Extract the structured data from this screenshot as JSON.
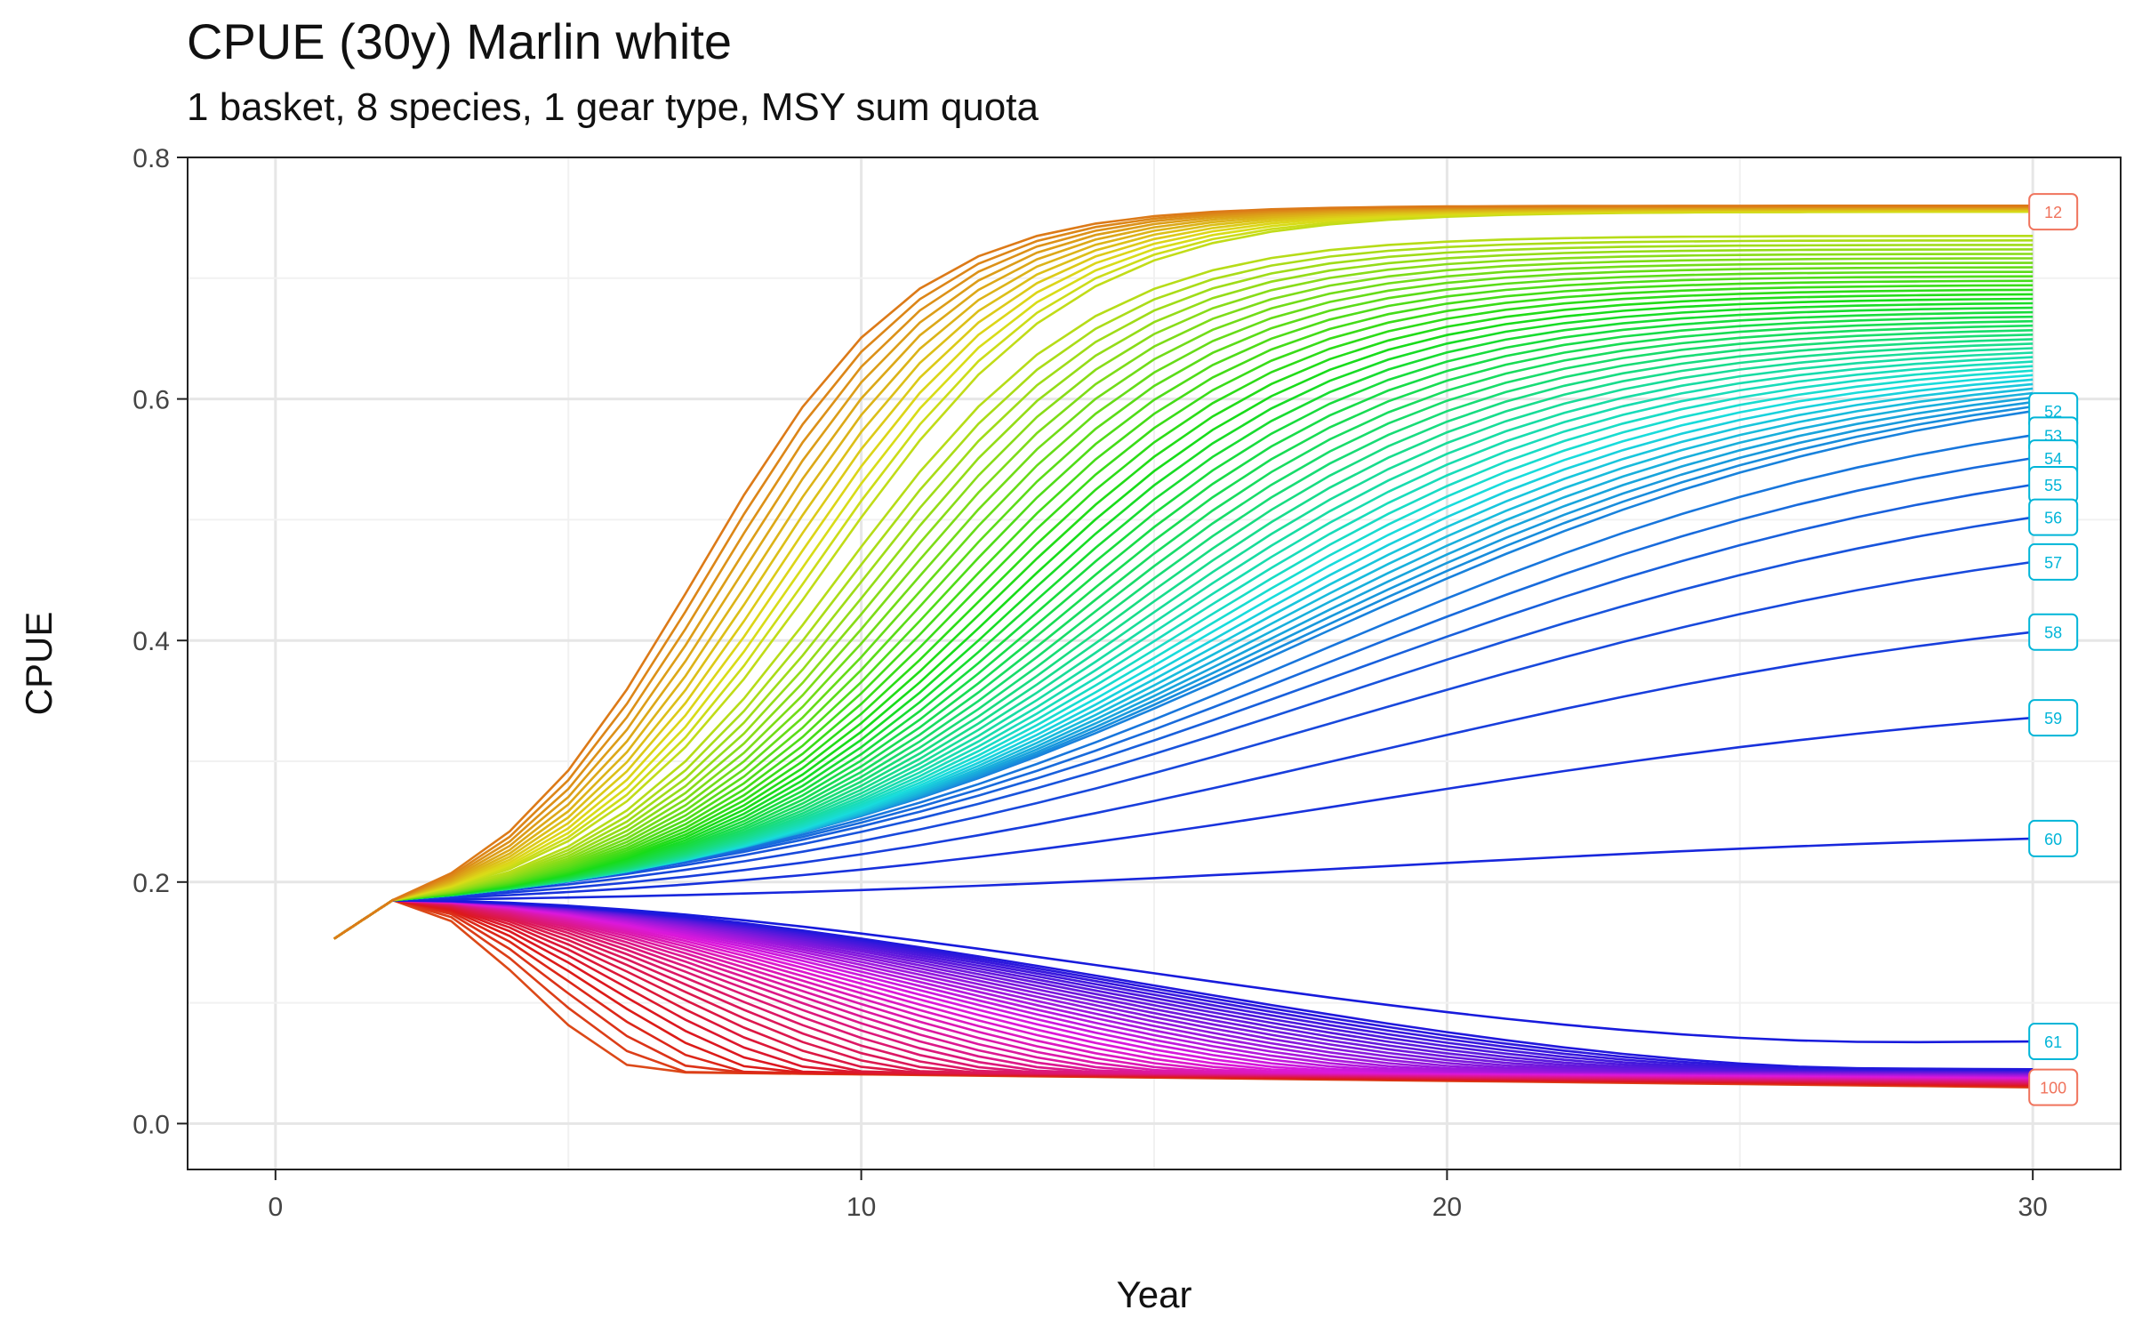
{
  "chart_data": {
    "type": "line",
    "title": "CPUE (30y) Marlin white",
    "subtitle": "1 basket, 8 species, 1 gear type, MSY sum quota",
    "xlabel": "Year",
    "ylabel": "CPUE",
    "xlim": [
      -1.5,
      31.5
    ],
    "ylim": [
      -0.038,
      0.8
    ],
    "x_ticks": [
      0,
      10,
      20,
      30
    ],
    "y_ticks": [
      0.0,
      0.2,
      0.4,
      0.6,
      0.8
    ],
    "x_tick_labels": [
      "0",
      "10",
      "20",
      "30"
    ],
    "y_tick_labels": [
      "0.0",
      "0.2",
      "0.4",
      "0.6",
      "0.8"
    ],
    "grid": true,
    "legend": "none",
    "x_range": [
      1,
      30
    ],
    "series_count": 100,
    "series_shape": {
      "start_value": 0.153,
      "year2_value": 0.185,
      "upper_max_end": 0.76,
      "upper_plateau_end": 0.735,
      "pivot_series": 60,
      "pivot_end": 0.236,
      "collapse_floor_end": 0.03
    },
    "end_values": [
      {
        "series": 12,
        "value": 0.755
      },
      {
        "series": 52,
        "value": 0.59
      },
      {
        "series": 53,
        "value": 0.57
      },
      {
        "series": 54,
        "value": 0.551
      },
      {
        "series": 55,
        "value": 0.529
      },
      {
        "series": 56,
        "value": 0.502
      },
      {
        "series": 57,
        "value": 0.465
      },
      {
        "series": 58,
        "value": 0.407
      },
      {
        "series": 59,
        "value": 0.336
      },
      {
        "series": 60,
        "value": 0.236
      },
      {
        "series": 61,
        "value": 0.068
      },
      {
        "series": 100,
        "value": 0.03
      }
    ],
    "labeled_series": [
      "12",
      "52",
      "53",
      "54",
      "55",
      "56",
      "57",
      "58",
      "59",
      "60",
      "61",
      "100"
    ],
    "colors": {
      "orange": "#e6820e",
      "green": "#2eb82e",
      "teal": "#00bfa5",
      "cyan": "#00b5d8",
      "blue": "#00a6f0",
      "purple": "#a05cf5",
      "pink": "#ff4fb8",
      "salmon": "#f0735c"
    }
  }
}
